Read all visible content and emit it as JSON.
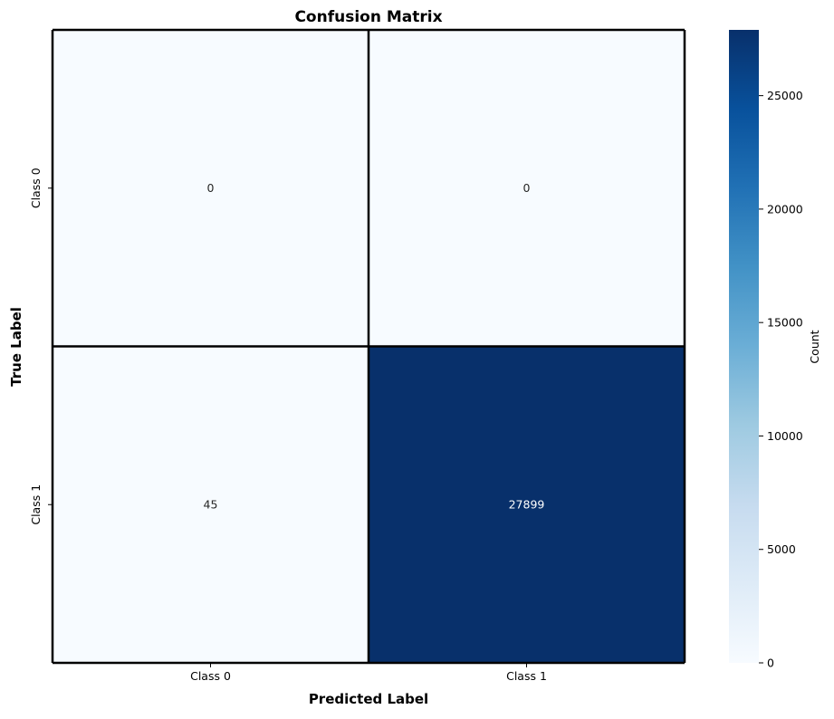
{
  "chart_data": {
    "type": "heatmap",
    "title": "Confusion Matrix",
    "xlabel": "Predicted Label",
    "ylabel": "True Label",
    "x_categories": [
      "Class 0",
      "Class 1"
    ],
    "y_categories": [
      "Class 0",
      "Class 1"
    ],
    "values": [
      [
        0,
        0
      ],
      [
        45,
        27899
      ]
    ],
    "annotations": [
      [
        "0",
        "0"
      ],
      [
        "45",
        "27899"
      ]
    ],
    "colormap": "Blues",
    "colors": {
      "low": "#f7fbff",
      "high": "#08306b",
      "grid": "#000000"
    },
    "colorbar": {
      "label": "Count",
      "range": [
        0,
        27899
      ],
      "ticks": [
        0,
        5000,
        10000,
        15000,
        20000,
        25000
      ],
      "tick_labels": [
        "0",
        "5000",
        "10000",
        "15000",
        "20000",
        "25000"
      ]
    }
  }
}
